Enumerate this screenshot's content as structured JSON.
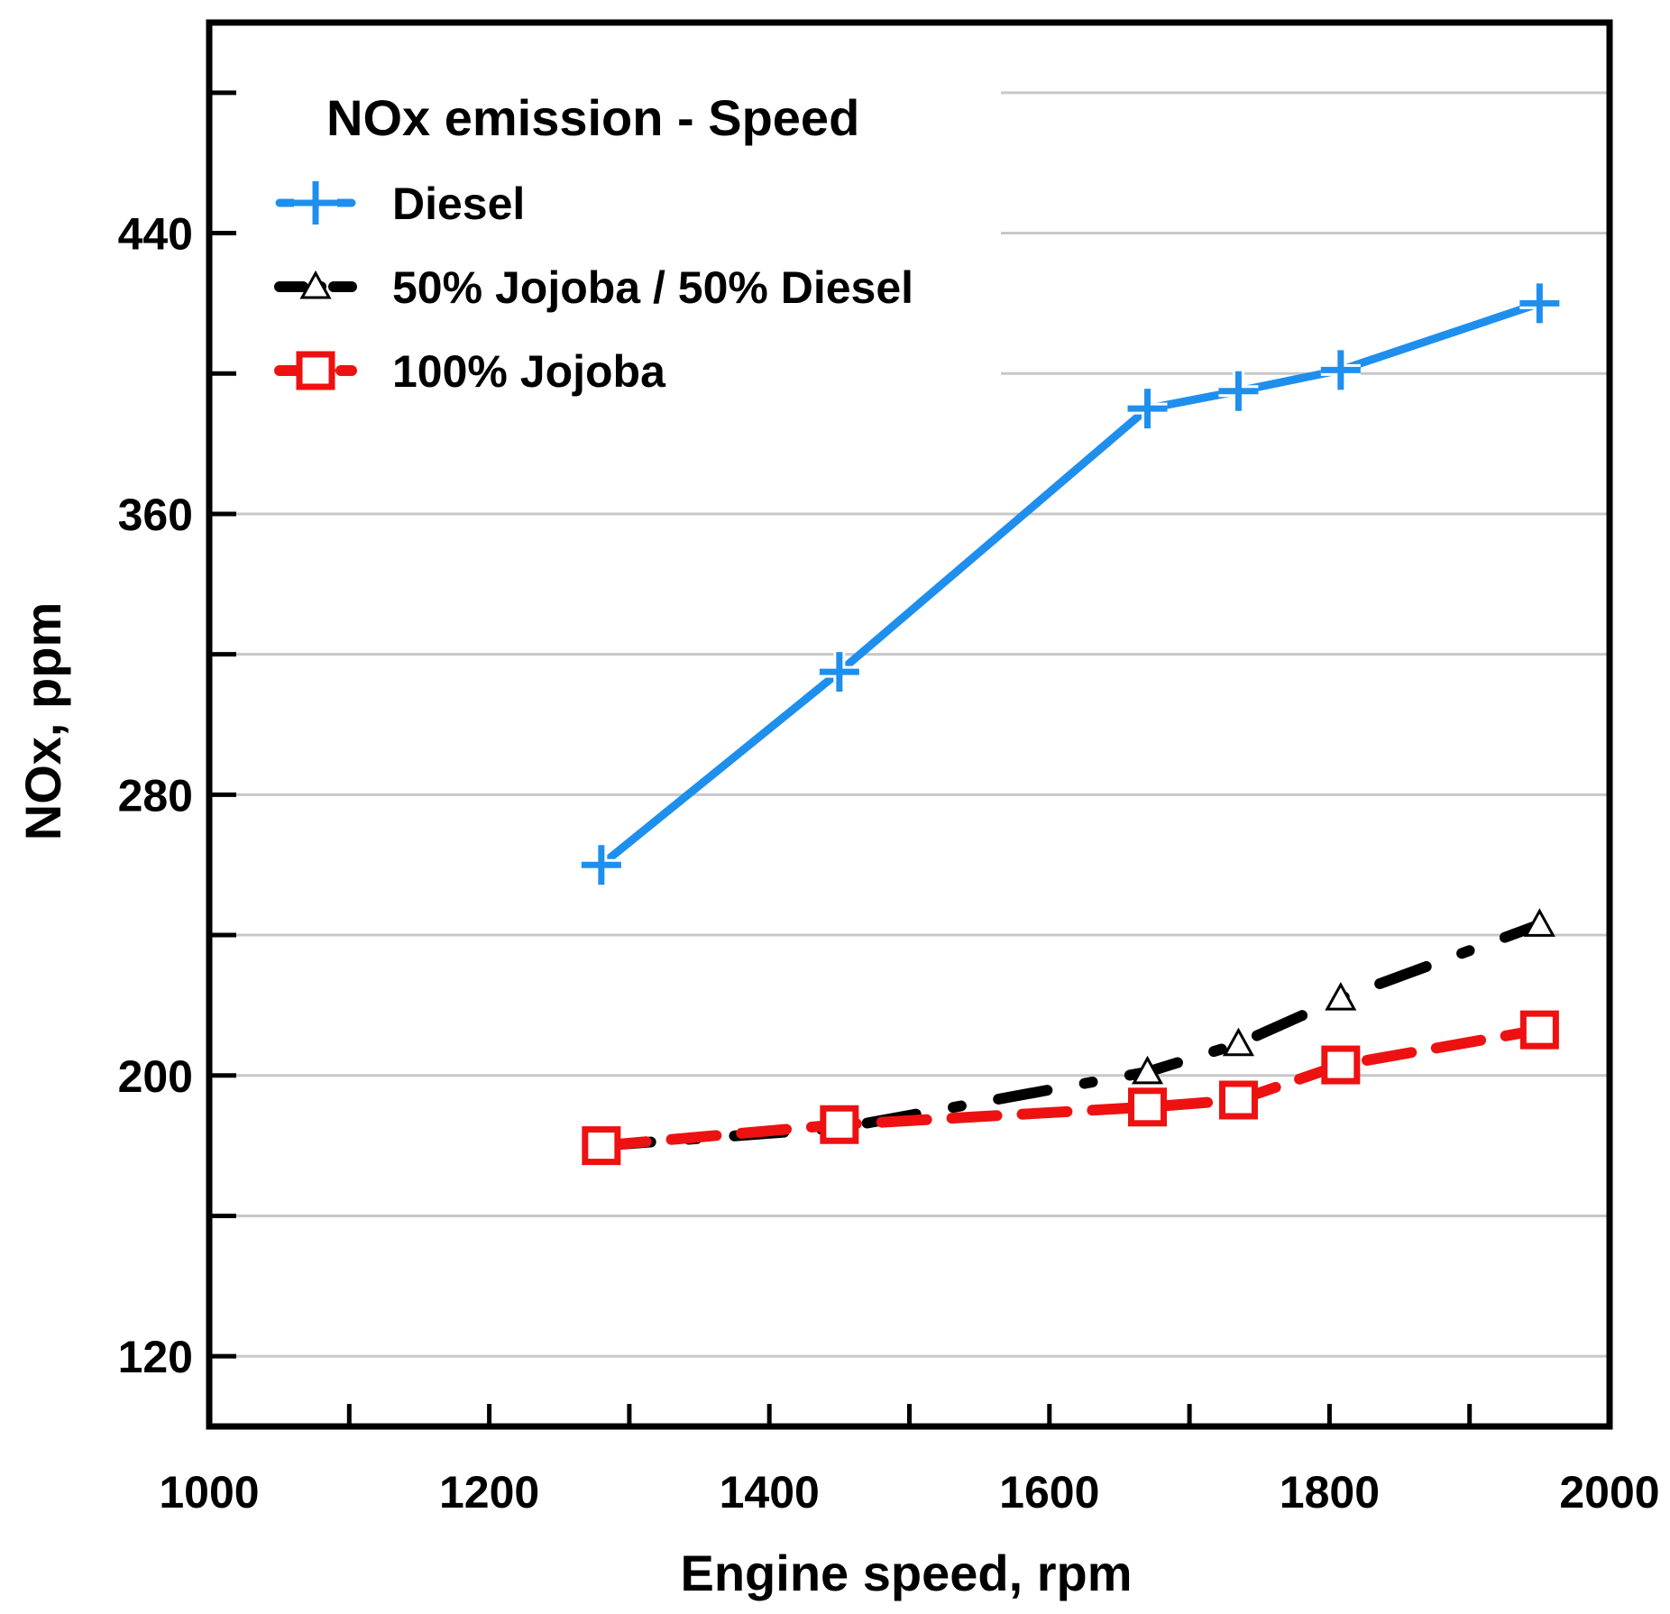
{
  "chart_data": {
    "type": "line",
    "title": "NOx emission - Speed",
    "xlabel": "Engine speed, rpm",
    "ylabel": "NOx, ppm",
    "xlim": [
      1000,
      2000
    ],
    "ylim": [
      100,
      500
    ],
    "xticks": [
      1000,
      1200,
      1400,
      1600,
      1800,
      2000
    ],
    "yticks_labeled": [
      120,
      200,
      280,
      360,
      440
    ],
    "grid": true,
    "legend_position": "top-left",
    "series": [
      {
        "name": "Diesel",
        "color": "#1f8fee",
        "marker": "plus",
        "line": "solid",
        "x": [
          1280,
          1450,
          1670,
          1735,
          1808,
          1950
        ],
        "y": [
          260,
          315,
          390,
          395,
          401,
          420
        ]
      },
      {
        "name": "50% Jojoba / 50% Diesel",
        "color": "#000000",
        "marker": "triangle",
        "line": "dashdot",
        "x": [
          1280,
          1450,
          1670,
          1735,
          1808,
          1950
        ],
        "y": [
          180,
          185,
          201,
          209,
          222,
          243
        ]
      },
      {
        "name": "100% Jojoba",
        "color": "#ee1111",
        "marker": "square",
        "line": "dashed",
        "x": [
          1280,
          1450,
          1670,
          1735,
          1808,
          1950
        ],
        "y": [
          180,
          186,
          191,
          193,
          203,
          213
        ]
      }
    ]
  }
}
